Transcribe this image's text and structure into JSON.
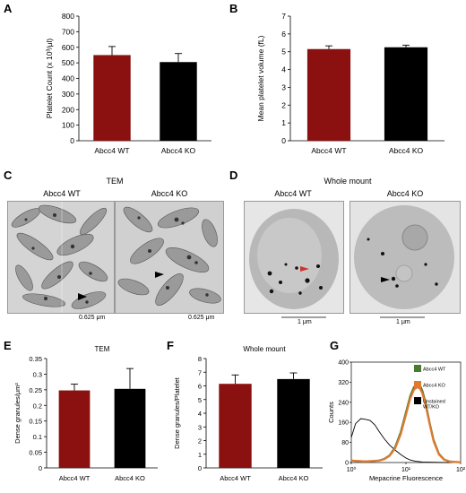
{
  "panels": {
    "A": "A",
    "B": "B",
    "C": "C",
    "D": "D",
    "E": "E",
    "F": "F",
    "G": "G"
  },
  "chart_data": [
    {
      "id": "A",
      "type": "bar",
      "categories": [
        "Abcc4 WT",
        "Abcc4 KO"
      ],
      "values": [
        550,
        505
      ],
      "errors": [
        55,
        55
      ],
      "ylabel": "Platelet Count (x 10³/μl)",
      "ylim": [
        0,
        800
      ],
      "yticks": [
        "0",
        "100",
        "200",
        "300",
        "400",
        "500",
        "600",
        "700",
        "800"
      ],
      "colors": [
        "#8B1010",
        "#000000"
      ]
    },
    {
      "id": "B",
      "type": "bar",
      "categories": [
        "Abcc4 WT",
        "Abcc4 KO"
      ],
      "values": [
        5.15,
        5.25
      ],
      "errors": [
        0.18,
        0.12
      ],
      "ylabel": "Mean platelet volume (fL)",
      "ylim": [
        0,
        7
      ],
      "yticks": [
        "0",
        "1",
        "2",
        "3",
        "4",
        "5",
        "6",
        "7"
      ],
      "colors": [
        "#8B1010",
        "#000000"
      ]
    },
    {
      "id": "E",
      "type": "bar",
      "title": "TEM",
      "categories": [
        "Abcc4 WT",
        "Abcc4 KO"
      ],
      "values": [
        0.248,
        0.253
      ],
      "errors": [
        0.02,
        0.065
      ],
      "ylabel": "Dense granules/μm²",
      "ylim": [
        0,
        0.35
      ],
      "yticks": [
        "0",
        "0.05",
        "0.1",
        "0.15",
        "0.2",
        "0.25",
        "0.3",
        "0.35"
      ],
      "colors": [
        "#8B1010",
        "#000000"
      ]
    },
    {
      "id": "F",
      "type": "bar",
      "title": "Whole mount",
      "categories": [
        "Abcc4 WT",
        "Abcc4 KO"
      ],
      "values": [
        6.15,
        6.5
      ],
      "errors": [
        0.65,
        0.45
      ],
      "ylabel": "Dense granules/Platelet",
      "ylim": [
        0,
        8
      ],
      "yticks": [
        "0",
        "1",
        "2",
        "3",
        "4",
        "5",
        "6",
        "7",
        "8"
      ],
      "colors": [
        "#8B1010",
        "#000000"
      ]
    },
    {
      "id": "G",
      "type": "line",
      "xlabel": "Mepacrine Fluorescence",
      "ylabel": "Counts",
      "xscale": "log",
      "xlim": [
        1,
        100
      ],
      "ylim": [
        0,
        400
      ],
      "yticks": [
        "0",
        "80",
        "160",
        "240",
        "320",
        "400"
      ],
      "xticks": [
        "10⁰",
        "10¹",
        "10²"
      ],
      "legend_position": "right",
      "series": [
        {
          "name": "Abcc4 WT",
          "color": "#4A7A2E",
          "x": [
            1,
            1.3,
            1.6,
            2,
            2.5,
            3.2,
            4,
            5,
            6.3,
            8,
            10,
            12,
            14,
            16,
            18,
            20,
            23,
            27,
            32,
            40,
            50,
            63,
            80,
            100
          ],
          "y": [
            8,
            6,
            5,
            5,
            6,
            8,
            14,
            28,
            60,
            120,
            200,
            265,
            300,
            315,
            308,
            285,
            235,
            160,
            90,
            35,
            12,
            4,
            2,
            1
          ]
        },
        {
          "name": "Abcc4 KO",
          "color": "#E07A30",
          "x": [
            1,
            1.3,
            1.6,
            2,
            2.5,
            3.2,
            4,
            5,
            6.3,
            8,
            10,
            12,
            14,
            16,
            18,
            20,
            23,
            27,
            32,
            40,
            50,
            63,
            80,
            100
          ],
          "y": [
            8,
            6,
            5,
            5,
            6,
            8,
            13,
            26,
            55,
            112,
            190,
            255,
            290,
            300,
            295,
            275,
            225,
            155,
            85,
            32,
            11,
            4,
            2,
            1
          ]
        },
        {
          "name": "Unstained\nWT/KO",
          "color": "#000000",
          "x": [
            1,
            1.2,
            1.5,
            1.8,
            2.2,
            2.7,
            3.2,
            4,
            5,
            6.3,
            8,
            10,
            12,
            15,
            20,
            30,
            50,
            100
          ],
          "y": [
            100,
            155,
            175,
            172,
            168,
            150,
            125,
            95,
            70,
            50,
            32,
            18,
            10,
            5,
            2,
            1,
            0,
            0
          ]
        }
      ]
    }
  ],
  "panelC": {
    "title": "TEM",
    "left_label": "Abcc4 WT",
    "right_label": "Abcc4 KO",
    "scale_left": "0.625 μm",
    "scale_right": "0.625 μm"
  },
  "panelD": {
    "title": "Whole mount",
    "left_label": "Abcc4 WT",
    "right_label": "Abcc4 KO",
    "scale_left": "1 μm",
    "scale_right": "1 μm"
  }
}
